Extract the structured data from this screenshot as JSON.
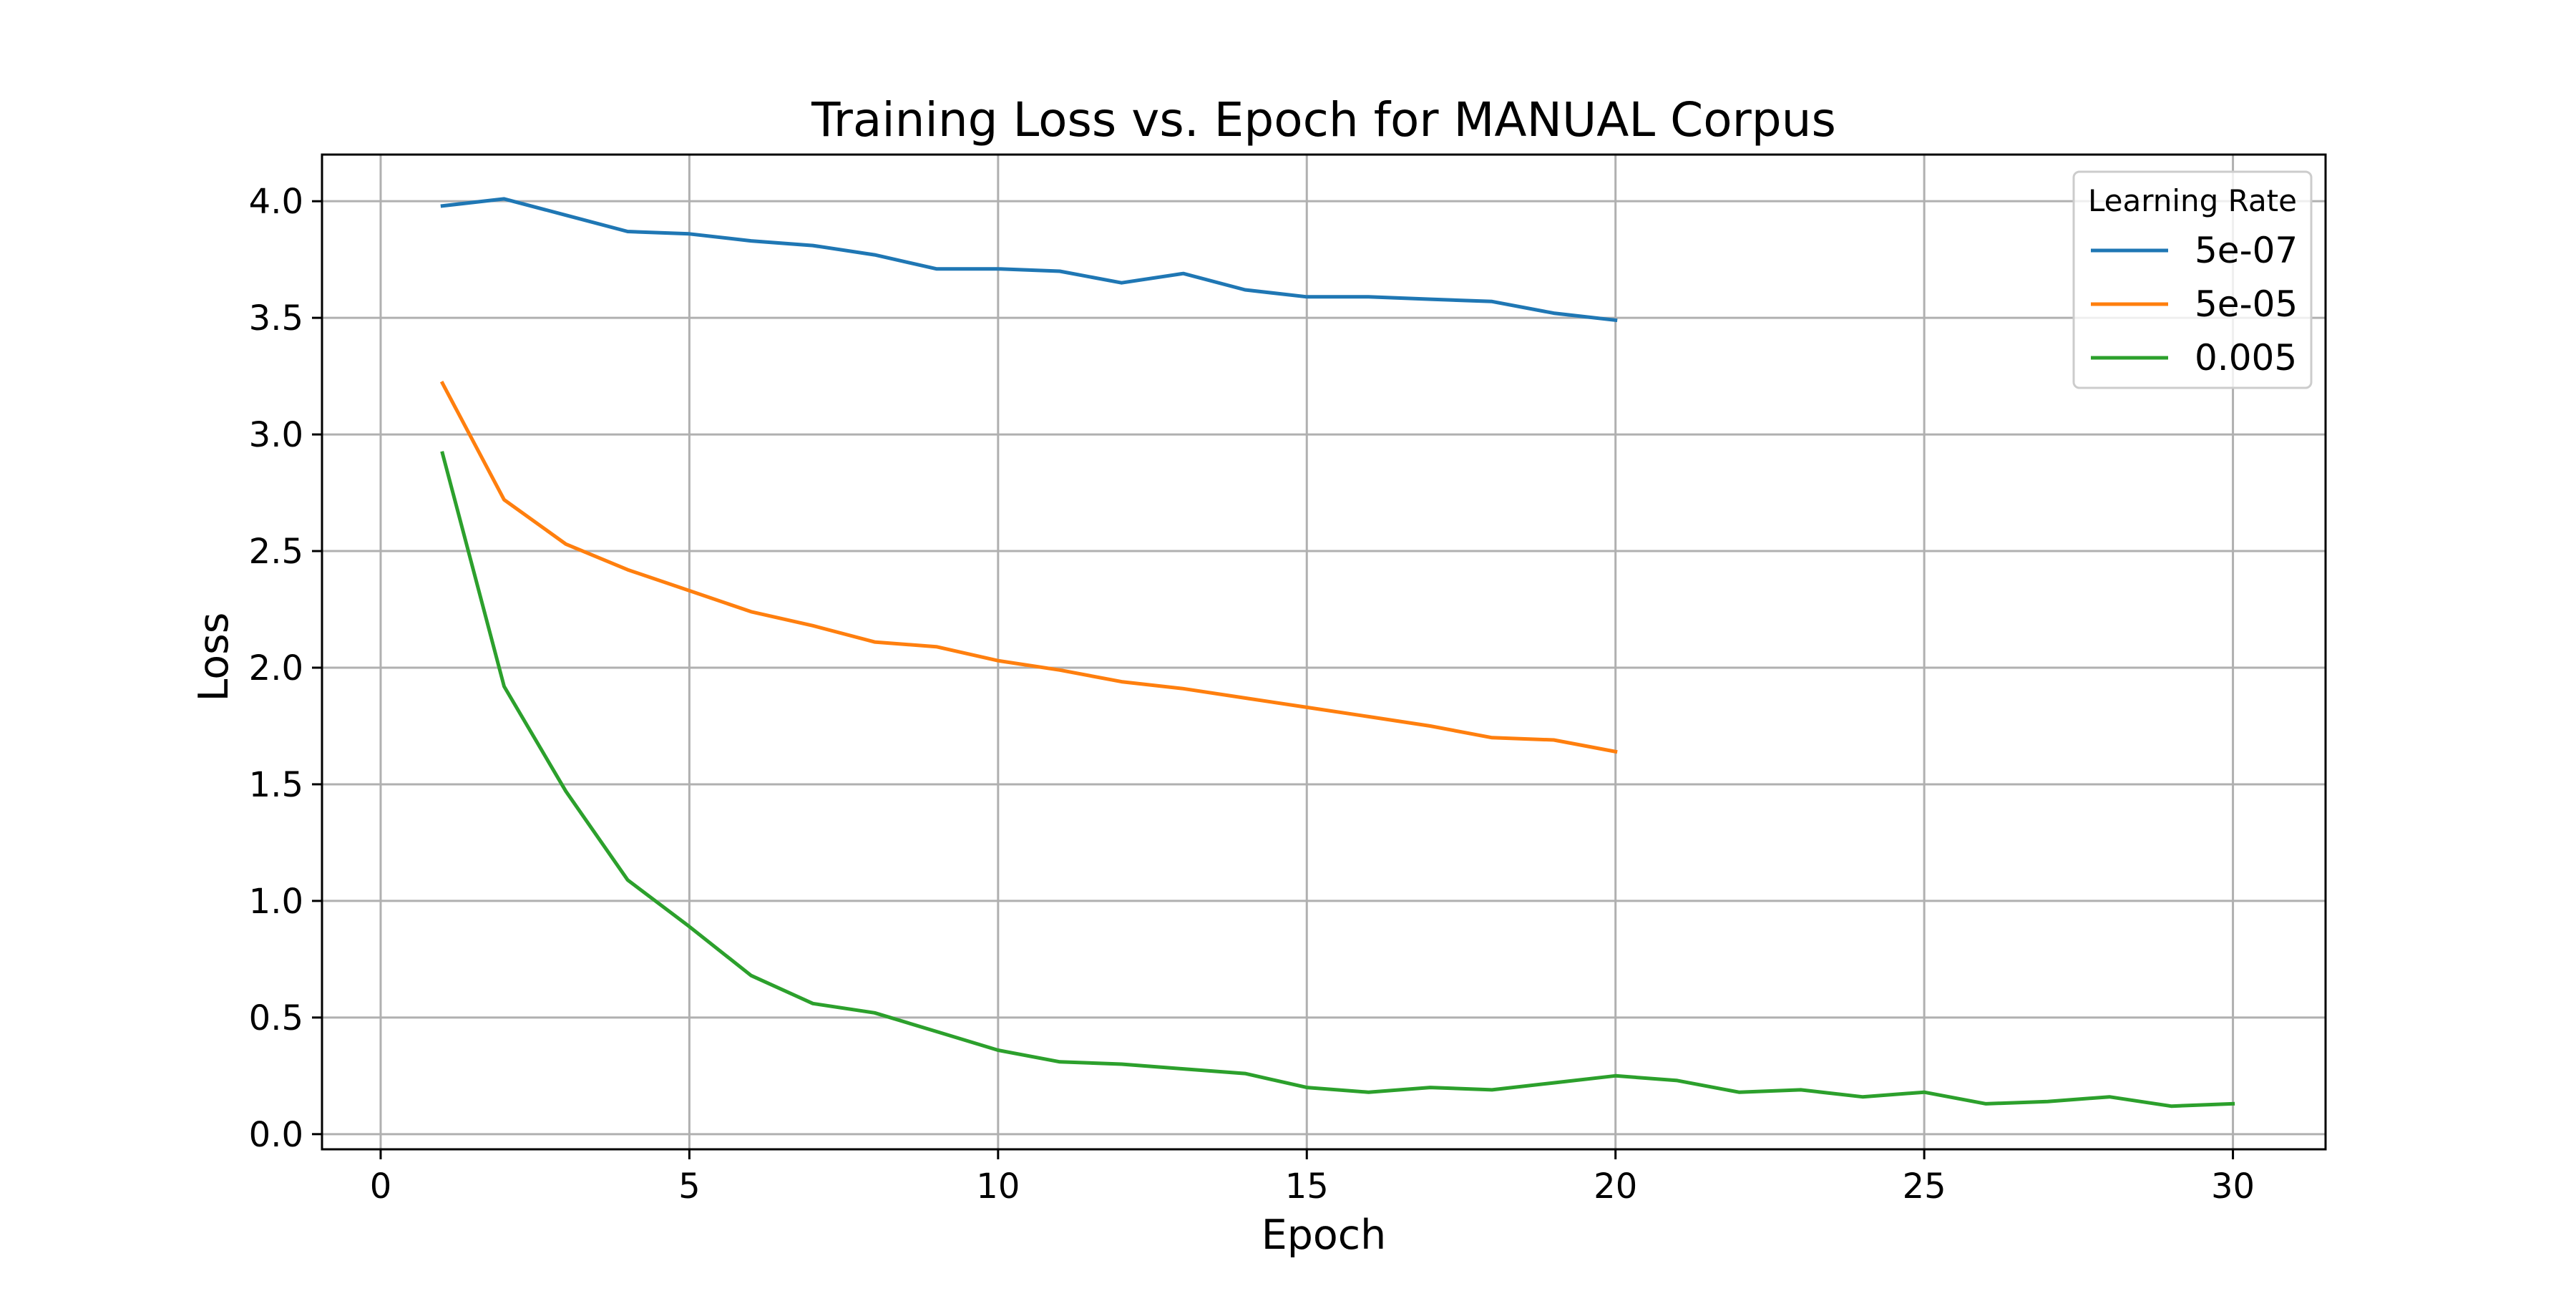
{
  "chart_data": {
    "type": "line",
    "title": "Training Loss vs. Epoch for MANUAL Corpus",
    "xlabel": "Epoch",
    "ylabel": "Loss",
    "xlim": [
      -0.95,
      31.5
    ],
    "ylim": [
      -0.065,
      4.2
    ],
    "xticks": [
      0,
      5,
      10,
      15,
      20,
      25,
      30
    ],
    "yticks": [
      0.0,
      0.5,
      1.0,
      1.5,
      2.0,
      2.5,
      3.0,
      3.5,
      4.0
    ],
    "ytick_labels": [
      "0.0",
      "0.5",
      "1.0",
      "1.5",
      "2.0",
      "2.5",
      "3.0",
      "3.5",
      "4.0"
    ],
    "grid": true,
    "legend": {
      "title": "Learning Rate",
      "position": "top-right"
    },
    "series": [
      {
        "name": "5e-07",
        "color": "#1f77b4",
        "x": [
          1,
          2,
          3,
          4,
          5,
          6,
          7,
          8,
          9,
          10,
          11,
          12,
          13,
          14,
          15,
          16,
          17,
          18,
          19,
          20
        ],
        "y": [
          3.98,
          4.01,
          3.94,
          3.87,
          3.86,
          3.83,
          3.81,
          3.77,
          3.71,
          3.71,
          3.7,
          3.65,
          3.69,
          3.62,
          3.59,
          3.59,
          3.58,
          3.57,
          3.52,
          3.49
        ]
      },
      {
        "name": "5e-05",
        "color": "#ff7f0e",
        "x": [
          1,
          2,
          3,
          4,
          5,
          6,
          7,
          8,
          9,
          10,
          11,
          12,
          13,
          14,
          15,
          16,
          17,
          18,
          19,
          20
        ],
        "y": [
          3.22,
          2.72,
          2.53,
          2.42,
          2.33,
          2.24,
          2.18,
          2.11,
          2.09,
          2.03,
          1.99,
          1.94,
          1.91,
          1.87,
          1.83,
          1.79,
          1.75,
          1.7,
          1.69,
          1.64
        ]
      },
      {
        "name": "0.005",
        "color": "#2ca02c",
        "x": [
          1,
          2,
          3,
          4,
          5,
          6,
          7,
          8,
          9,
          10,
          11,
          12,
          13,
          14,
          15,
          16,
          17,
          18,
          19,
          20,
          21,
          22,
          23,
          24,
          25,
          26,
          27,
          28,
          29,
          30
        ],
        "y": [
          2.92,
          1.92,
          1.47,
          1.09,
          0.89,
          0.68,
          0.56,
          0.52,
          0.44,
          0.36,
          0.31,
          0.3,
          0.28,
          0.26,
          0.2,
          0.18,
          0.2,
          0.19,
          0.22,
          0.25,
          0.23,
          0.18,
          0.19,
          0.16,
          0.18,
          0.13,
          0.14,
          0.16,
          0.12,
          0.13
        ]
      }
    ]
  }
}
